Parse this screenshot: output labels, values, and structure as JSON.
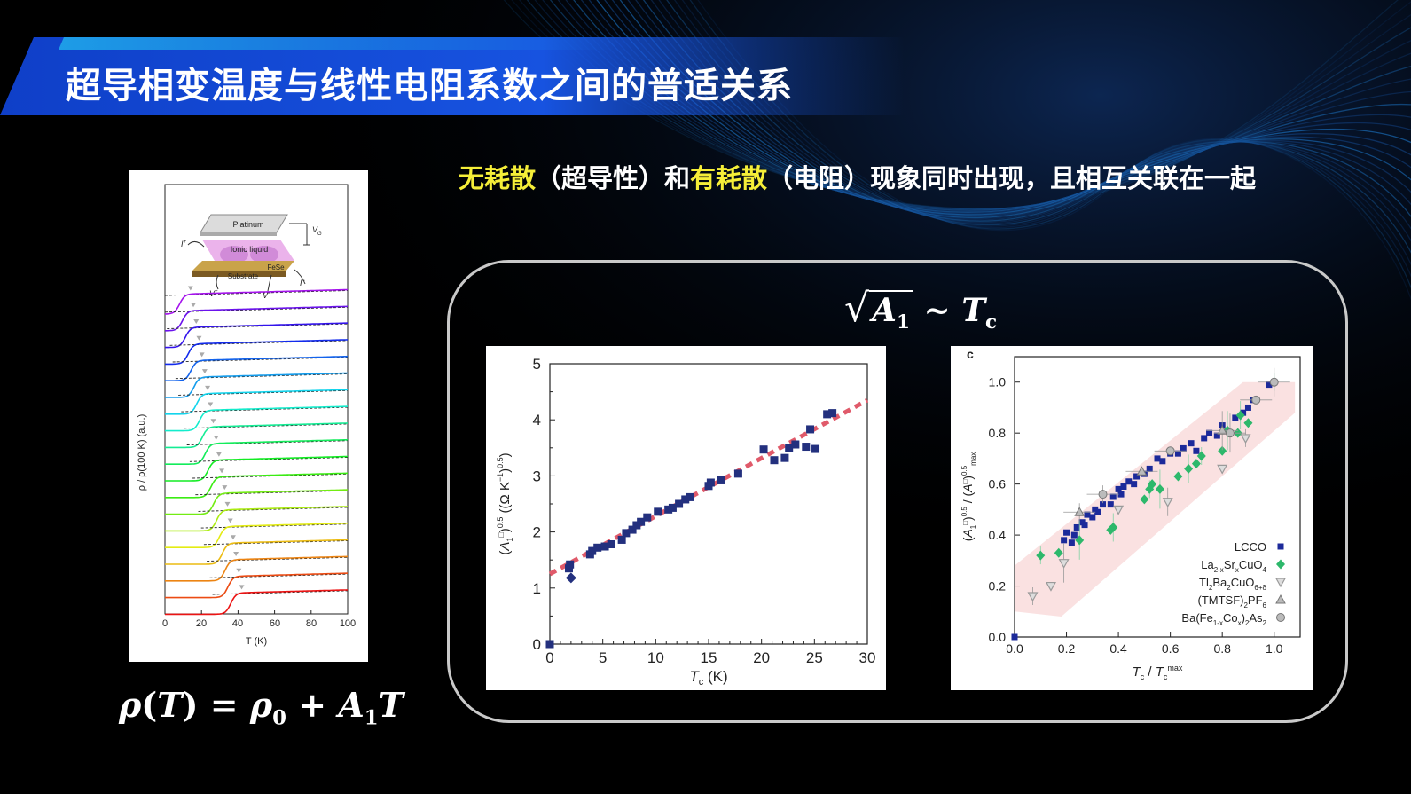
{
  "title": "超导相变温度与线性电阻系数之间的普适关系",
  "subtitle": {
    "part1": "无耗散",
    "part2": "（超导性）和",
    "part3": "有耗散",
    "part4": "（电阻）现象同时出现，且相互关联在一起"
  },
  "colors": {
    "highlight": "#f5ee38",
    "title_band": "#1247d8",
    "background": "#000000",
    "panel_border": "#c9c9c9"
  },
  "formula_rho": {
    "rho": "ρ",
    "T": "T",
    "eq": " = ",
    "rho0": "ρ",
    "sub0": "0",
    "plus": " + ",
    "A": "A",
    "sub1": "1",
    "T2": "T"
  },
  "formula_sqrt": {
    "radical": "√",
    "A": "A",
    "sub1": "1",
    "sim": " ~ ",
    "T": "T",
    "subc": "c"
  },
  "left_figure": {
    "inset_labels": [
      "Platinum",
      "Ionic liquid",
      "FeSe",
      "Substrate",
      "V",
      "G",
      "I",
      "+",
      "I",
      "−",
      "V",
      "+",
      "V",
      "−"
    ],
    "ylabel": "ρ / ρ(100 K) (a.u.)",
    "xlabel": "T (K)",
    "xticks": [
      "0",
      "20",
      "40",
      "60",
      "80",
      "100"
    ]
  },
  "chart_data": [
    {
      "type": "scatter",
      "xlabel": "T_c (K)",
      "ylabel": "(A_1^□)^0.5 ((Ω K^-1)^0.5)",
      "xlim": [
        0,
        30
      ],
      "ylim": [
        0,
        5
      ],
      "xticks": [
        "0",
        "5",
        "10",
        "15",
        "20",
        "25",
        "30"
      ],
      "yticks": [
        "0",
        "1",
        "2",
        "3",
        "4",
        "5"
      ],
      "fit_line": {
        "x": [
          0,
          30
        ],
        "y": [
          1.25,
          4.35
        ]
      },
      "points": [
        [
          0,
          0
        ],
        [
          1.8,
          1.35
        ],
        [
          1.9,
          1.42
        ],
        [
          2.0,
          1.18
        ],
        [
          3.8,
          1.6
        ],
        [
          4.0,
          1.66
        ],
        [
          4.5,
          1.72
        ],
        [
          5.2,
          1.74
        ],
        [
          5.8,
          1.78
        ],
        [
          6.8,
          1.86
        ],
        [
          7.2,
          1.98
        ],
        [
          7.8,
          2.04
        ],
        [
          8.2,
          2.12
        ],
        [
          8.6,
          2.18
        ],
        [
          9.2,
          2.26
        ],
        [
          10.2,
          2.36
        ],
        [
          11.2,
          2.4
        ],
        [
          11.6,
          2.43
        ],
        [
          12.2,
          2.5
        ],
        [
          12.8,
          2.58
        ],
        [
          13.2,
          2.62
        ],
        [
          15.0,
          2.82
        ],
        [
          15.2,
          2.88
        ],
        [
          16.2,
          2.92
        ],
        [
          17.8,
          3.04
        ],
        [
          20.2,
          3.47
        ],
        [
          21.2,
          3.28
        ],
        [
          22.2,
          3.32
        ],
        [
          22.6,
          3.5
        ],
        [
          23.2,
          3.56
        ],
        [
          24.2,
          3.52
        ],
        [
          24.6,
          3.83
        ],
        [
          25.1,
          3.48
        ],
        [
          26.2,
          4.1
        ],
        [
          26.7,
          4.12
        ]
      ]
    },
    {
      "type": "scatter",
      "panel_label": "c",
      "xlabel": "T_c / T_c^max",
      "ylabel": "(A_1^□)^0.5 / (A_1^□)^0.5_max",
      "xlim": [
        0,
        1.1
      ],
      "ylim": [
        0,
        1.1
      ],
      "xticks": [
        "0.0",
        "0.2",
        "0.4",
        "0.6",
        "0.8",
        "1.0"
      ],
      "yticks": [
        "0.0",
        "0.2",
        "0.4",
        "0.6",
        "0.8",
        "1.0"
      ],
      "series": [
        {
          "name": "LCCO",
          "color": "#1c2a9a",
          "marker": "square",
          "points": [
            [
              0,
              0
            ],
            [
              0.19,
              0.38
            ],
            [
              0.2,
              0.41
            ],
            [
              0.22,
              0.37
            ],
            [
              0.23,
              0.4
            ],
            [
              0.24,
              0.43
            ],
            [
              0.26,
              0.45
            ],
            [
              0.27,
              0.44
            ],
            [
              0.28,
              0.48
            ],
            [
              0.3,
              0.47
            ],
            [
              0.31,
              0.5
            ],
            [
              0.32,
              0.49
            ],
            [
              0.34,
              0.52
            ],
            [
              0.37,
              0.52
            ],
            [
              0.38,
              0.55
            ],
            [
              0.4,
              0.58
            ],
            [
              0.41,
              0.56
            ],
            [
              0.42,
              0.59
            ],
            [
              0.44,
              0.61
            ],
            [
              0.46,
              0.6
            ],
            [
              0.47,
              0.63
            ],
            [
              0.5,
              0.64
            ],
            [
              0.52,
              0.66
            ],
            [
              0.55,
              0.7
            ],
            [
              0.57,
              0.69
            ],
            [
              0.6,
              0.72
            ],
            [
              0.63,
              0.72
            ],
            [
              0.65,
              0.74
            ],
            [
              0.68,
              0.76
            ],
            [
              0.7,
              0.73
            ],
            [
              0.73,
              0.78
            ],
            [
              0.75,
              0.8
            ],
            [
              0.78,
              0.79
            ],
            [
              0.8,
              0.83
            ],
            [
              0.85,
              0.86
            ],
            [
              0.88,
              0.88
            ],
            [
              0.9,
              0.9
            ],
            [
              0.92,
              0.93
            ],
            [
              0.98,
              0.99
            ],
            [
              1.0,
              1.0
            ]
          ]
        },
        {
          "name": "La2-xSrxCuO4",
          "color": "#2db86b",
          "marker": "diamond",
          "points": [
            [
              0.1,
              0.32
            ],
            [
              0.17,
              0.33
            ],
            [
              0.25,
              0.38
            ],
            [
              0.37,
              0.42
            ],
            [
              0.38,
              0.43
            ],
            [
              0.5,
              0.54
            ],
            [
              0.52,
              0.58
            ],
            [
              0.53,
              0.6
            ],
            [
              0.56,
              0.58
            ],
            [
              0.63,
              0.63
            ],
            [
              0.67,
              0.66
            ],
            [
              0.7,
              0.68
            ],
            [
              0.72,
              0.71
            ],
            [
              0.8,
              0.73
            ],
            [
              0.82,
              0.81
            ],
            [
              0.86,
              0.8
            ],
            [
              0.87,
              0.87
            ],
            [
              0.9,
              0.84
            ],
            [
              1.0,
              1.0
            ]
          ]
        },
        {
          "name": "Tl2Ba2CuO6+δ",
          "color": "#9a9a9a",
          "marker": "triangle-down",
          "points": [
            [
              0.07,
              0.16
            ],
            [
              0.14,
              0.2
            ],
            [
              0.19,
              0.29
            ],
            [
              0.4,
              0.5
            ],
            [
              0.59,
              0.53
            ],
            [
              0.8,
              0.66
            ],
            [
              0.89,
              0.78
            ]
          ]
        },
        {
          "name": "(TMTSF)2PF6",
          "color": "#9a9a9a",
          "marker": "triangle-up",
          "points": [
            [
              0.25,
              0.49
            ],
            [
              0.49,
              0.65
            ],
            [
              0.8,
              0.81
            ]
          ]
        },
        {
          "name": "Ba(Fe1-xCox)2As2",
          "color": "#9a9a9a",
          "marker": "circle",
          "points": [
            [
              0.34,
              0.56
            ],
            [
              0.6,
              0.73
            ],
            [
              0.83,
              0.8
            ],
            [
              0.93,
              0.93
            ],
            [
              1.0,
              1.0
            ]
          ]
        }
      ],
      "legend": {
        "placement": "bottom-right",
        "labels": [
          {
            "parts": [
              "LCCO"
            ]
          },
          {
            "parts": [
              "La",
              "2-x",
              "Sr",
              "x",
              "CuO",
              "4"
            ]
          },
          {
            "parts": [
              "Tl",
              "2",
              "Ba",
              "2",
              "CuO",
              "6+δ"
            ]
          },
          {
            "parts": [
              "(TMTSF)",
              "2",
              "PF",
              "6"
            ]
          },
          {
            "parts": [
              "Ba(Fe",
              "1-x",
              "Co",
              "x",
              ")",
              "2",
              "As",
              "2"
            ]
          }
        ]
      }
    }
  ]
}
